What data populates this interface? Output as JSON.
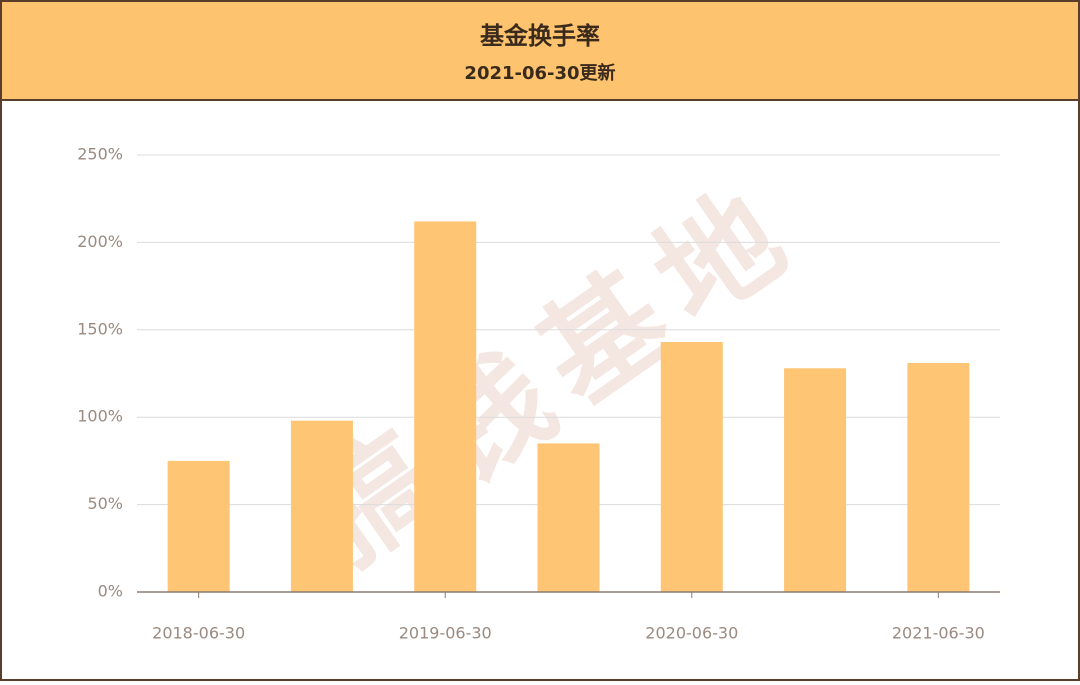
{
  "chart_data": {
    "type": "bar",
    "title": "基金换手率",
    "subtitle": "2021-06-30更新",
    "categories": [
      "2018-06-30",
      null,
      "2019-06-30",
      null,
      "2020-06-30",
      null,
      "2021-06-30"
    ],
    "values": [
      75,
      98,
      212,
      85,
      143,
      128,
      131
    ],
    "color": "#fdc574",
    "ylim": [
      0,
      250
    ],
    "yticks": [
      {
        "value": 0,
        "label": "0%"
      },
      {
        "value": 50,
        "label": "50%"
      },
      {
        "value": 100,
        "label": "100%"
      },
      {
        "value": 150,
        "label": "150%"
      },
      {
        "value": 200,
        "label": "200%"
      },
      {
        "value": 250,
        "label": "250%"
      }
    ],
    "grid": true,
    "watermark": "搞钱基地"
  }
}
